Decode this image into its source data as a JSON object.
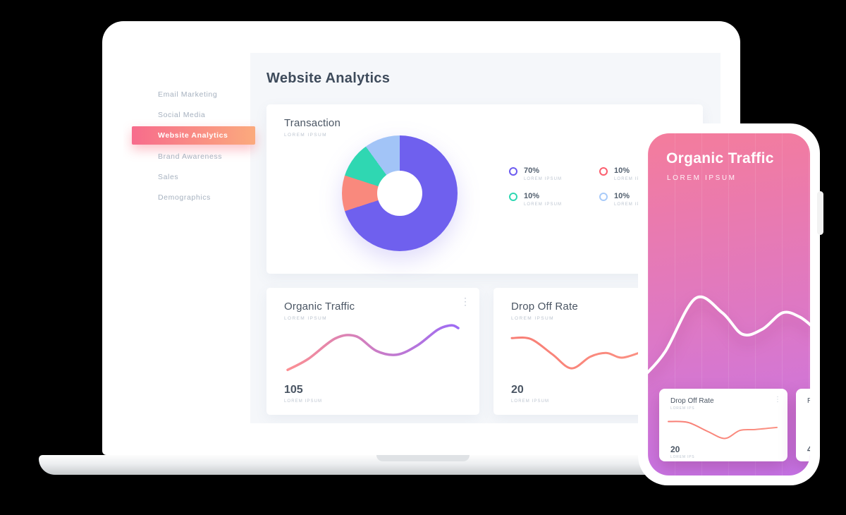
{
  "sidebar": {
    "items": [
      {
        "label": "Email Marketing"
      },
      {
        "label": "Social Media"
      },
      {
        "label": "Website Analytics",
        "active": true
      },
      {
        "label": "Brand Awareness"
      },
      {
        "label": "Sales"
      },
      {
        "label": "Demographics"
      }
    ]
  },
  "main": {
    "title": "Website Analytics",
    "transaction_card": {
      "title": "Transaction",
      "subtitle": "LOREM IPSUM",
      "legend": [
        {
          "value": "70%",
          "label": "LOREM IPSUM",
          "color": "#6C5BF0"
        },
        {
          "value": "10%",
          "label": "LOREM IPSUM",
          "color": "#FB5E6E"
        },
        {
          "value": "10%",
          "label": "LOREM IPSUM",
          "color": "#2FD7B2"
        },
        {
          "value": "10%",
          "label": "LOREM IPSUM",
          "color": "#A9CBF9"
        }
      ]
    },
    "organic_card": {
      "title": "Organic Traffic",
      "subtitle": "LOREM IPSUM",
      "value": "105",
      "value_label": "LOREM IPSUM"
    },
    "dropoff_card": {
      "title": "Drop Off Rate",
      "subtitle": "LOREM IPSUM",
      "value": "20",
      "value_label": "LOREM IPSUM"
    }
  },
  "phone": {
    "title": "Organic Traffic",
    "subtitle": "LOREM IPSUM",
    "cards": [
      {
        "title": "Drop Off Rate",
        "subtitle": "LOREM IPS",
        "value": "20",
        "value_label": "LOREM IPS"
      },
      {
        "title": "R",
        "value": "4"
      }
    ]
  },
  "colors": {
    "background": "#000000",
    "sidebar_active_gradient": [
      "#F76C8C",
      "#FBAA7D"
    ],
    "phone_gradient": [
      "#F47C9C",
      "#C674E8"
    ],
    "main_background": "#F5F7FA"
  },
  "chart_data": [
    {
      "id": "transaction-donut",
      "type": "pie",
      "donut": true,
      "title": "Transaction",
      "labels": [
        "LOREM IPSUM",
        "LOREM IPSUM",
        "LOREM IPSUM",
        "LOREM IPSUM"
      ],
      "values": [
        70,
        10,
        10,
        10
      ],
      "colors": [
        "#6F60EE",
        "#F9897D",
        "#2FD7B2",
        "#A2C4F7"
      ],
      "legend_position": "right"
    },
    {
      "id": "organic-traffic-line",
      "type": "line",
      "title": "Organic Traffic",
      "current_value": 105,
      "points": [
        [
          0,
          90
        ],
        [
          12,
          70
        ],
        [
          28,
          32
        ],
        [
          40,
          28
        ],
        [
          52,
          55
        ],
        [
          64,
          62
        ],
        [
          76,
          45
        ],
        [
          88,
          16
        ],
        [
          96,
          8
        ],
        [
          100,
          13
        ]
      ],
      "stroke_gradient": [
        "#FC8F93",
        "#9D6BF5"
      ]
    },
    {
      "id": "drop-off-line",
      "type": "line",
      "title": "Drop Off Rate",
      "current_value": 20,
      "points": [
        [
          0,
          20
        ],
        [
          14,
          22
        ],
        [
          30,
          55
        ],
        [
          44,
          85
        ],
        [
          58,
          60
        ],
        [
          70,
          52
        ],
        [
          82,
          62
        ],
        [
          100,
          45
        ]
      ],
      "stroke_gradient": [
        "#F87E75",
        "#FB9183"
      ]
    },
    {
      "id": "phone-organic-line",
      "type": "line",
      "title": "Organic Traffic (mobile)",
      "points": [
        [
          0,
          95
        ],
        [
          12,
          72
        ],
        [
          30,
          20
        ],
        [
          46,
          34
        ],
        [
          58,
          55
        ],
        [
          70,
          50
        ],
        [
          82,
          34
        ],
        [
          92,
          38
        ],
        [
          100,
          48
        ]
      ],
      "stroke_gradient": [
        "#FFFFFF",
        "#FFFFFF"
      ]
    },
    {
      "id": "phone-dropoff-line",
      "type": "line",
      "title": "Drop Off Rate (mobile)",
      "current_value": 20,
      "points": [
        [
          0,
          25
        ],
        [
          18,
          28
        ],
        [
          36,
          58
        ],
        [
          52,
          82
        ],
        [
          66,
          55
        ],
        [
          80,
          52
        ],
        [
          100,
          45
        ]
      ],
      "stroke_gradient": [
        "#F87E75",
        "#FB9183"
      ]
    }
  ]
}
